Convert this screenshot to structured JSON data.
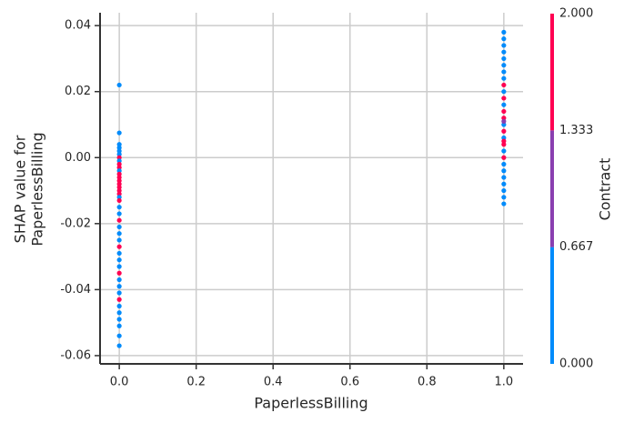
{
  "chart_data": {
    "type": "scatter",
    "x_label": "PaperlessBilling",
    "y_label": [
      "SHAP value for",
      "PaperlessBilling"
    ],
    "xlim": [
      -0.05,
      1.05
    ],
    "ylim": [
      -0.0625,
      0.0439
    ],
    "xticks": [
      {
        "value": 0,
        "label": "0.0"
      },
      {
        "value": 0.2,
        "label": "0.2"
      },
      {
        "value": 0.4,
        "label": "0.4"
      },
      {
        "value": 0.6,
        "label": "0.6"
      },
      {
        "value": 0.8,
        "label": "0.8"
      },
      {
        "value": 1,
        "label": "1.0"
      }
    ],
    "yticks": [
      0.04,
      0.02,
      {
        "value": 0,
        "label": "0.00"
      },
      -0.02,
      -0.04,
      -0.06
    ],
    "grid": true,
    "x": [
      0,
      0,
      0,
      0,
      0,
      0,
      0,
      0,
      0,
      0,
      0,
      0,
      0,
      0,
      0,
      0,
      0,
      0,
      0,
      0,
      0,
      0,
      0,
      0,
      0,
      0,
      0,
      0,
      0,
      0,
      0,
      0,
      0,
      0,
      0,
      0,
      0,
      0,
      0,
      0,
      0,
      1,
      1,
      1,
      1,
      1,
      1,
      1,
      1,
      1,
      1,
      1,
      1,
      1,
      1,
      1,
      1,
      1,
      1,
      1,
      1,
      1,
      1,
      1,
      1,
      1,
      1,
      1,
      1,
      1
    ],
    "y": [
      0.022,
      0.0075,
      0.004,
      0.003,
      0.002,
      0.001,
      0.0,
      -0.001,
      -0.002,
      -0.003,
      -0.004,
      -0.005,
      -0.006,
      -0.007,
      -0.008,
      -0.009,
      -0.01,
      -0.011,
      -0.012,
      -0.013,
      -0.015,
      -0.017,
      -0.019,
      -0.021,
      -0.023,
      -0.025,
      -0.027,
      -0.029,
      -0.031,
      -0.033,
      -0.035,
      -0.037,
      -0.039,
      -0.041,
      -0.043,
      -0.045,
      -0.047,
      -0.049,
      -0.051,
      -0.054,
      -0.057,
      0.038,
      0.036,
      0.034,
      0.032,
      0.03,
      0.028,
      0.026,
      0.024,
      0.022,
      0.02,
      0.018,
      0.016,
      0.014,
      0.012,
      0.01,
      0.008,
      0.006,
      0.004,
      0.002,
      0.0,
      -0.002,
      -0.004,
      -0.006,
      -0.008,
      -0.01,
      -0.012,
      -0.014,
      0.011,
      0.005
    ],
    "contract": [
      0,
      0,
      0,
      0,
      0,
      0,
      2,
      0,
      2,
      2,
      0,
      2,
      2,
      2,
      2,
      2,
      2,
      2,
      0,
      2,
      0,
      0,
      2,
      0,
      0,
      0,
      2,
      0,
      0,
      0,
      2,
      0,
      0,
      0,
      2,
      0,
      0,
      0,
      0,
      0,
      0,
      0,
      0,
      0,
      0,
      0,
      0,
      0,
      0,
      2,
      0,
      2,
      0,
      2,
      2,
      0,
      2,
      0,
      2,
      0,
      2,
      0,
      0,
      0,
      0,
      0,
      0,
      0,
      1,
      2
    ],
    "colorbar": {
      "label": "Contract",
      "lim": [
        0,
        2
      ],
      "ticks": [
        {
          "value": 2,
          "label": "2.000"
        },
        {
          "value": 1.333,
          "label": "1.333"
        },
        {
          "value": 0.667,
          "label": "0.667"
        },
        {
          "value": 0,
          "label": "0.000"
        }
      ],
      "colors": [
        "#008bfb",
        "#8a3fb0",
        "#ff0052"
      ]
    }
  }
}
